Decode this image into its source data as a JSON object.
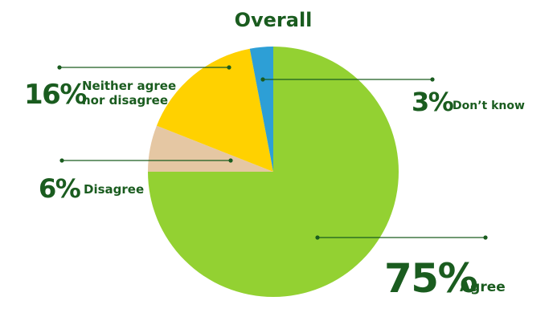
{
  "chart_data": {
    "type": "pie",
    "title": "Overall",
    "slices": [
      {
        "label": "Agree",
        "pct_label": "75%",
        "value": 75,
        "color": "#93d132"
      },
      {
        "label": "Disagree",
        "pct_label": "6%",
        "value": 6,
        "color": "#e5c7a3"
      },
      {
        "label": "Neither agree nor disagree",
        "label_lines": [
          "Neither agree",
          "nor disagree"
        ],
        "pct_label": "16%",
        "value": 16,
        "color": "#ffd100"
      },
      {
        "label": "Don’t know",
        "pct_label": "3%",
        "value": 3,
        "color": "#2d9fd6"
      }
    ],
    "label_color": "#1a5c1f"
  }
}
